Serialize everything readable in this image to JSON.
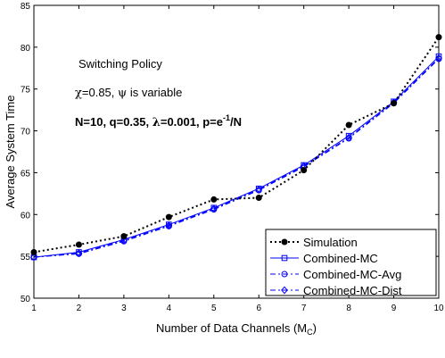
{
  "chart_data": {
    "type": "line",
    "xlabel": "Number of Data Channels (M",
    "xlabel_sub": "C",
    "xlabel_close": ")",
    "ylabel": "Average System Time",
    "xlim": [
      1,
      10
    ],
    "ylim": [
      50,
      85
    ],
    "xticks": [
      1,
      2,
      3,
      4,
      5,
      6,
      7,
      8,
      9,
      10
    ],
    "yticks": [
      50,
      55,
      60,
      65,
      70,
      75,
      80,
      85
    ],
    "grid": false,
    "legend_position": "bottom-right",
    "annotations": {
      "line1": "Switching Policy",
      "line2_chi": "χ",
      "line2_mid": "=0.85, ",
      "line2_psi": "ψ",
      "line2_end": " is variable",
      "line3_a": "N=10, q=0.35, ",
      "line3_lambda": "λ",
      "line3_b": "=0.001, p=e",
      "line3_sup": "-1",
      "line3_c": "/N"
    },
    "x": [
      1,
      2,
      3,
      4,
      5,
      6,
      7,
      8,
      9,
      10
    ],
    "series": [
      {
        "name": "Simulation",
        "values": [
          55.5,
          56.4,
          57.4,
          59.7,
          61.8,
          62.0,
          65.3,
          70.7,
          73.3,
          81.2
        ],
        "color": "#000000",
        "dash": "dotted",
        "marker": "dot"
      },
      {
        "name": "Combined-MC",
        "values": [
          54.9,
          55.5,
          57.0,
          58.8,
          60.8,
          63.1,
          65.9,
          69.4,
          73.5,
          78.9
        ],
        "color": "#0000ff",
        "dash": "solid",
        "marker": "square"
      },
      {
        "name": "Combined-MC-Avg",
        "values": [
          54.9,
          55.3,
          56.8,
          58.6,
          60.6,
          62.9,
          65.7,
          69.1,
          73.3,
          78.6
        ],
        "color": "#0000ff",
        "dash": "dashdot",
        "marker": "circle"
      },
      {
        "name": "Combined-MC-Dist",
        "values": [
          54.9,
          55.4,
          56.9,
          58.7,
          60.7,
          63.0,
          65.8,
          69.2,
          73.4,
          78.7
        ],
        "color": "#0000ff",
        "dash": "dashdot",
        "marker": "diamond"
      }
    ]
  }
}
